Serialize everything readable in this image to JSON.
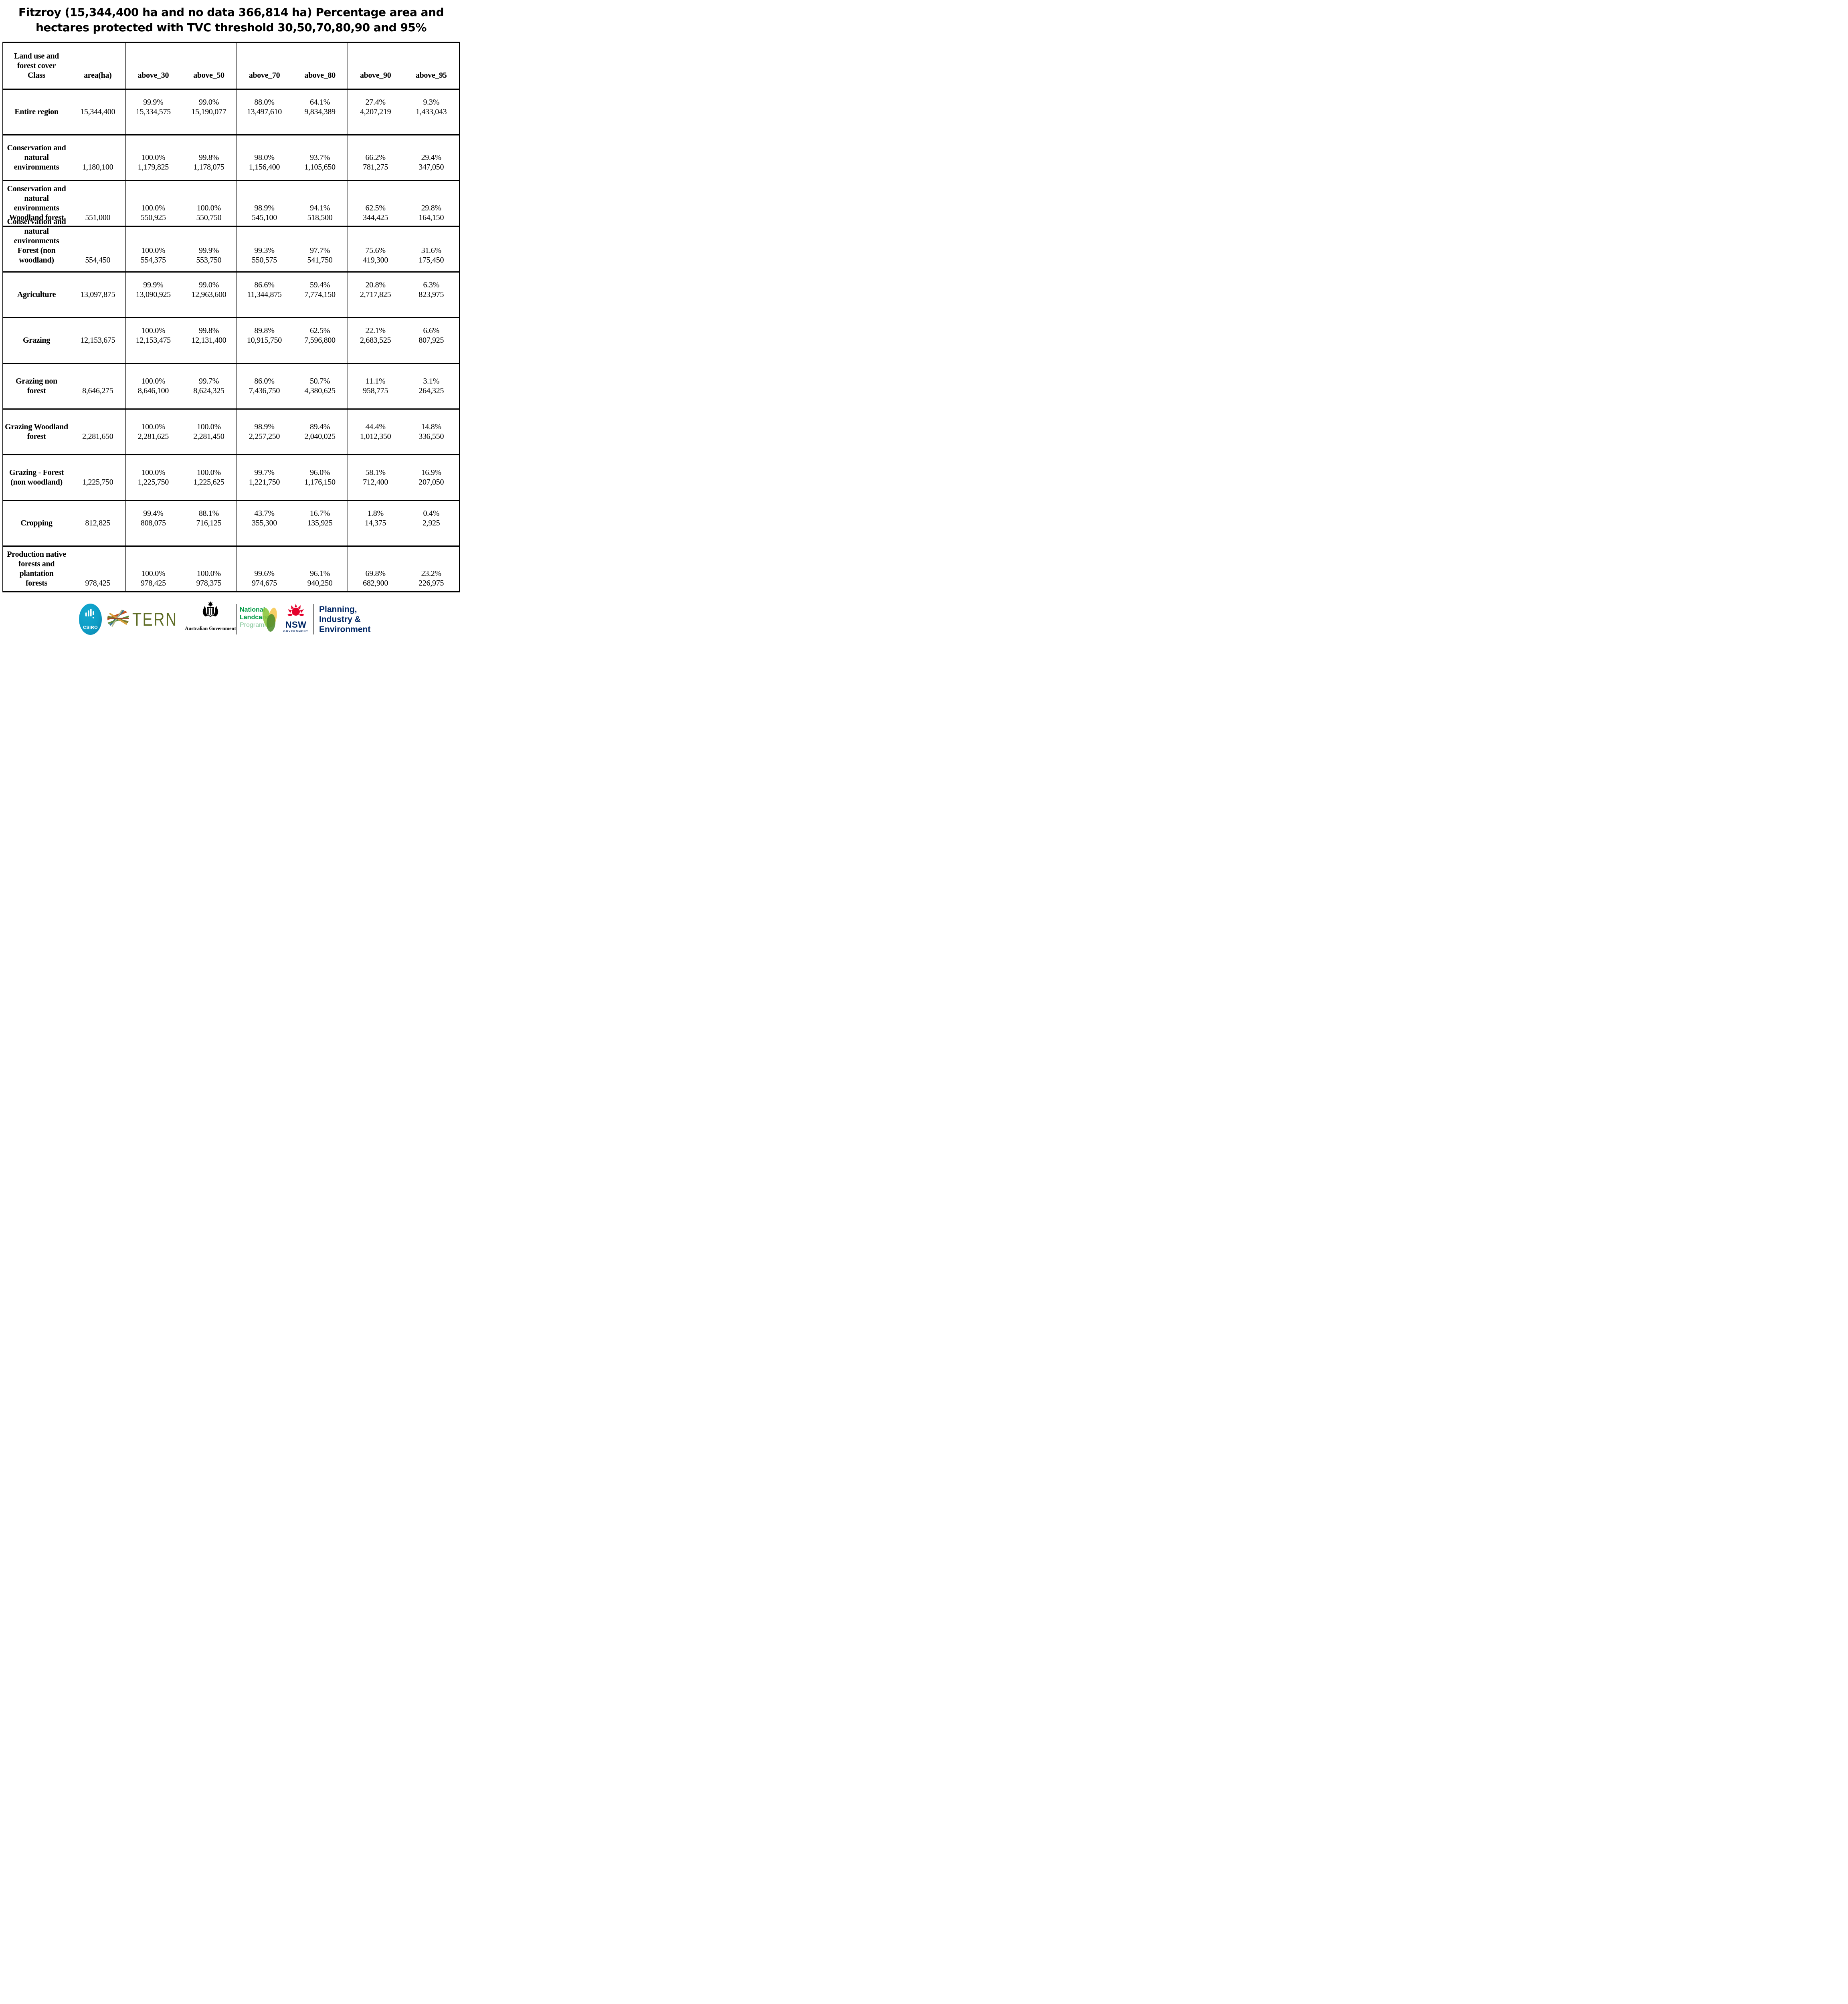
{
  "title": {
    "line1": "Fitzroy (15,344,400 ha and no data 366,814 ha) Percentage area and",
    "line2": "hectares protected with TVC threshold 30,50,70,80,90 and 95%"
  },
  "table": {
    "columns": [
      "Land use and\nforest cover\nClass",
      "area(ha)",
      "above_30",
      "above_50",
      "above_70",
      "above_80",
      "above_90",
      "above_95"
    ],
    "rows": [
      {
        "label": "Entire region",
        "area": "15,344,400",
        "cells": [
          {
            "pct": "99.9%",
            "ha": "15,334,575"
          },
          {
            "pct": "99.0%",
            "ha": "15,190,077"
          },
          {
            "pct": "88.0%",
            "ha": "13,497,610"
          },
          {
            "pct": "64.1%",
            "ha": "9,834,389"
          },
          {
            "pct": "27.4%",
            "ha": "4,207,219"
          },
          {
            "pct": "9.3%",
            "ha": "1,433,043"
          }
        ]
      },
      {
        "label": "Conservation and\nnatural\nenvironments",
        "area": "1,180,100",
        "cells": [
          {
            "pct": "100.0%",
            "ha": "1,179,825"
          },
          {
            "pct": "99.8%",
            "ha": "1,178,075"
          },
          {
            "pct": "98.0%",
            "ha": "1,156,400"
          },
          {
            "pct": "93.7%",
            "ha": "1,105,650"
          },
          {
            "pct": "66.2%",
            "ha": "781,275"
          },
          {
            "pct": "29.4%",
            "ha": "347,050"
          }
        ]
      },
      {
        "label": "Conservation and\nnatural\nenvironments\nWoodland forest",
        "area": "551,000",
        "cells": [
          {
            "pct": "100.0%",
            "ha": "550,925"
          },
          {
            "pct": "100.0%",
            "ha": "550,750"
          },
          {
            "pct": "98.9%",
            "ha": "545,100"
          },
          {
            "pct": "94.1%",
            "ha": "518,500"
          },
          {
            "pct": "62.5%",
            "ha": "344,425"
          },
          {
            "pct": "29.8%",
            "ha": "164,150"
          }
        ]
      },
      {
        "label": "Conservation and\nnatural\nenvironments\nForest (non\nwoodland)",
        "area": "554,450",
        "cells": [
          {
            "pct": "100.0%",
            "ha": "554,375"
          },
          {
            "pct": "99.9%",
            "ha": "553,750"
          },
          {
            "pct": "99.3%",
            "ha": "550,575"
          },
          {
            "pct": "97.7%",
            "ha": "541,750"
          },
          {
            "pct": "75.6%",
            "ha": "419,300"
          },
          {
            "pct": "31.6%",
            "ha": "175,450"
          }
        ]
      },
      {
        "label": "Agriculture",
        "area": "13,097,875",
        "cells": [
          {
            "pct": "99.9%",
            "ha": "13,090,925"
          },
          {
            "pct": "99.0%",
            "ha": "12,963,600"
          },
          {
            "pct": "86.6%",
            "ha": "11,344,875"
          },
          {
            "pct": "59.4%",
            "ha": "7,774,150"
          },
          {
            "pct": "20.8%",
            "ha": "2,717,825"
          },
          {
            "pct": "6.3%",
            "ha": "823,975"
          }
        ]
      },
      {
        "label": "Grazing",
        "area": "12,153,675",
        "cells": [
          {
            "pct": "100.0%",
            "ha": "12,153,475"
          },
          {
            "pct": "99.8%",
            "ha": "12,131,400"
          },
          {
            "pct": "89.8%",
            "ha": "10,915,750"
          },
          {
            "pct": "62.5%",
            "ha": "7,596,800"
          },
          {
            "pct": "22.1%",
            "ha": "2,683,525"
          },
          {
            "pct": "6.6%",
            "ha": "807,925"
          }
        ]
      },
      {
        "label": "Grazing non\nforest",
        "area": "8,646,275",
        "cells": [
          {
            "pct": "100.0%",
            "ha": "8,646,100"
          },
          {
            "pct": "99.7%",
            "ha": "8,624,325"
          },
          {
            "pct": "86.0%",
            "ha": "7,436,750"
          },
          {
            "pct": "50.7%",
            "ha": "4,380,625"
          },
          {
            "pct": "11.1%",
            "ha": "958,775"
          },
          {
            "pct": "3.1%",
            "ha": "264,325"
          }
        ]
      },
      {
        "label": "Grazing Woodland\nforest",
        "area": "2,281,650",
        "cells": [
          {
            "pct": "100.0%",
            "ha": "2,281,625"
          },
          {
            "pct": "100.0%",
            "ha": "2,281,450"
          },
          {
            "pct": "98.9%",
            "ha": "2,257,250"
          },
          {
            "pct": "89.4%",
            "ha": "2,040,025"
          },
          {
            "pct": "44.4%",
            "ha": "1,012,350"
          },
          {
            "pct": "14.8%",
            "ha": "336,550"
          }
        ]
      },
      {
        "label": "Grazing - Forest\n(non woodland)",
        "area": "1,225,750",
        "cells": [
          {
            "pct": "100.0%",
            "ha": "1,225,750"
          },
          {
            "pct": "100.0%",
            "ha": "1,225,625"
          },
          {
            "pct": "99.7%",
            "ha": "1,221,750"
          },
          {
            "pct": "96.0%",
            "ha": "1,176,150"
          },
          {
            "pct": "58.1%",
            "ha": "712,400"
          },
          {
            "pct": "16.9%",
            "ha": "207,050"
          }
        ]
      },
      {
        "label": "Cropping",
        "area": "812,825",
        "cells": [
          {
            "pct": "99.4%",
            "ha": "808,075"
          },
          {
            "pct": "88.1%",
            "ha": "716,125"
          },
          {
            "pct": "43.7%",
            "ha": "355,300"
          },
          {
            "pct": "16.7%",
            "ha": "135,925"
          },
          {
            "pct": "1.8%",
            "ha": "14,375"
          },
          {
            "pct": "0.4%",
            "ha": "2,925"
          }
        ]
      },
      {
        "label": "Production native\nforests and\nplantation\nforests",
        "area": "978,425",
        "cells": [
          {
            "pct": "100.0%",
            "ha": "978,425"
          },
          {
            "pct": "100.0%",
            "ha": "978,375"
          },
          {
            "pct": "99.6%",
            "ha": "974,675"
          },
          {
            "pct": "96.1%",
            "ha": "940,250"
          },
          {
            "pct": "69.8%",
            "ha": "682,900"
          },
          {
            "pct": "23.2%",
            "ha": "226,975"
          }
        ]
      }
    ]
  },
  "footer": {
    "csiro": {
      "label": "CSIRO",
      "color": "#0E9DC6"
    },
    "tern": {
      "label": "TERN",
      "color": "#5F6D26"
    },
    "ausgov": {
      "label": "Australian Government"
    },
    "landcare": {
      "line1": "National",
      "line2": "Landcare",
      "line3": "Programme",
      "color_dark": "#009A44",
      "color_light": "#86C79B"
    },
    "nsw": {
      "label": "NSW",
      "sub": "GOVERNMENT",
      "red": "#E4002B",
      "navy": "#002664"
    },
    "dpie": {
      "line1": "Planning,",
      "line2": "Industry &",
      "line3": "Environment",
      "color": "#002664"
    }
  }
}
